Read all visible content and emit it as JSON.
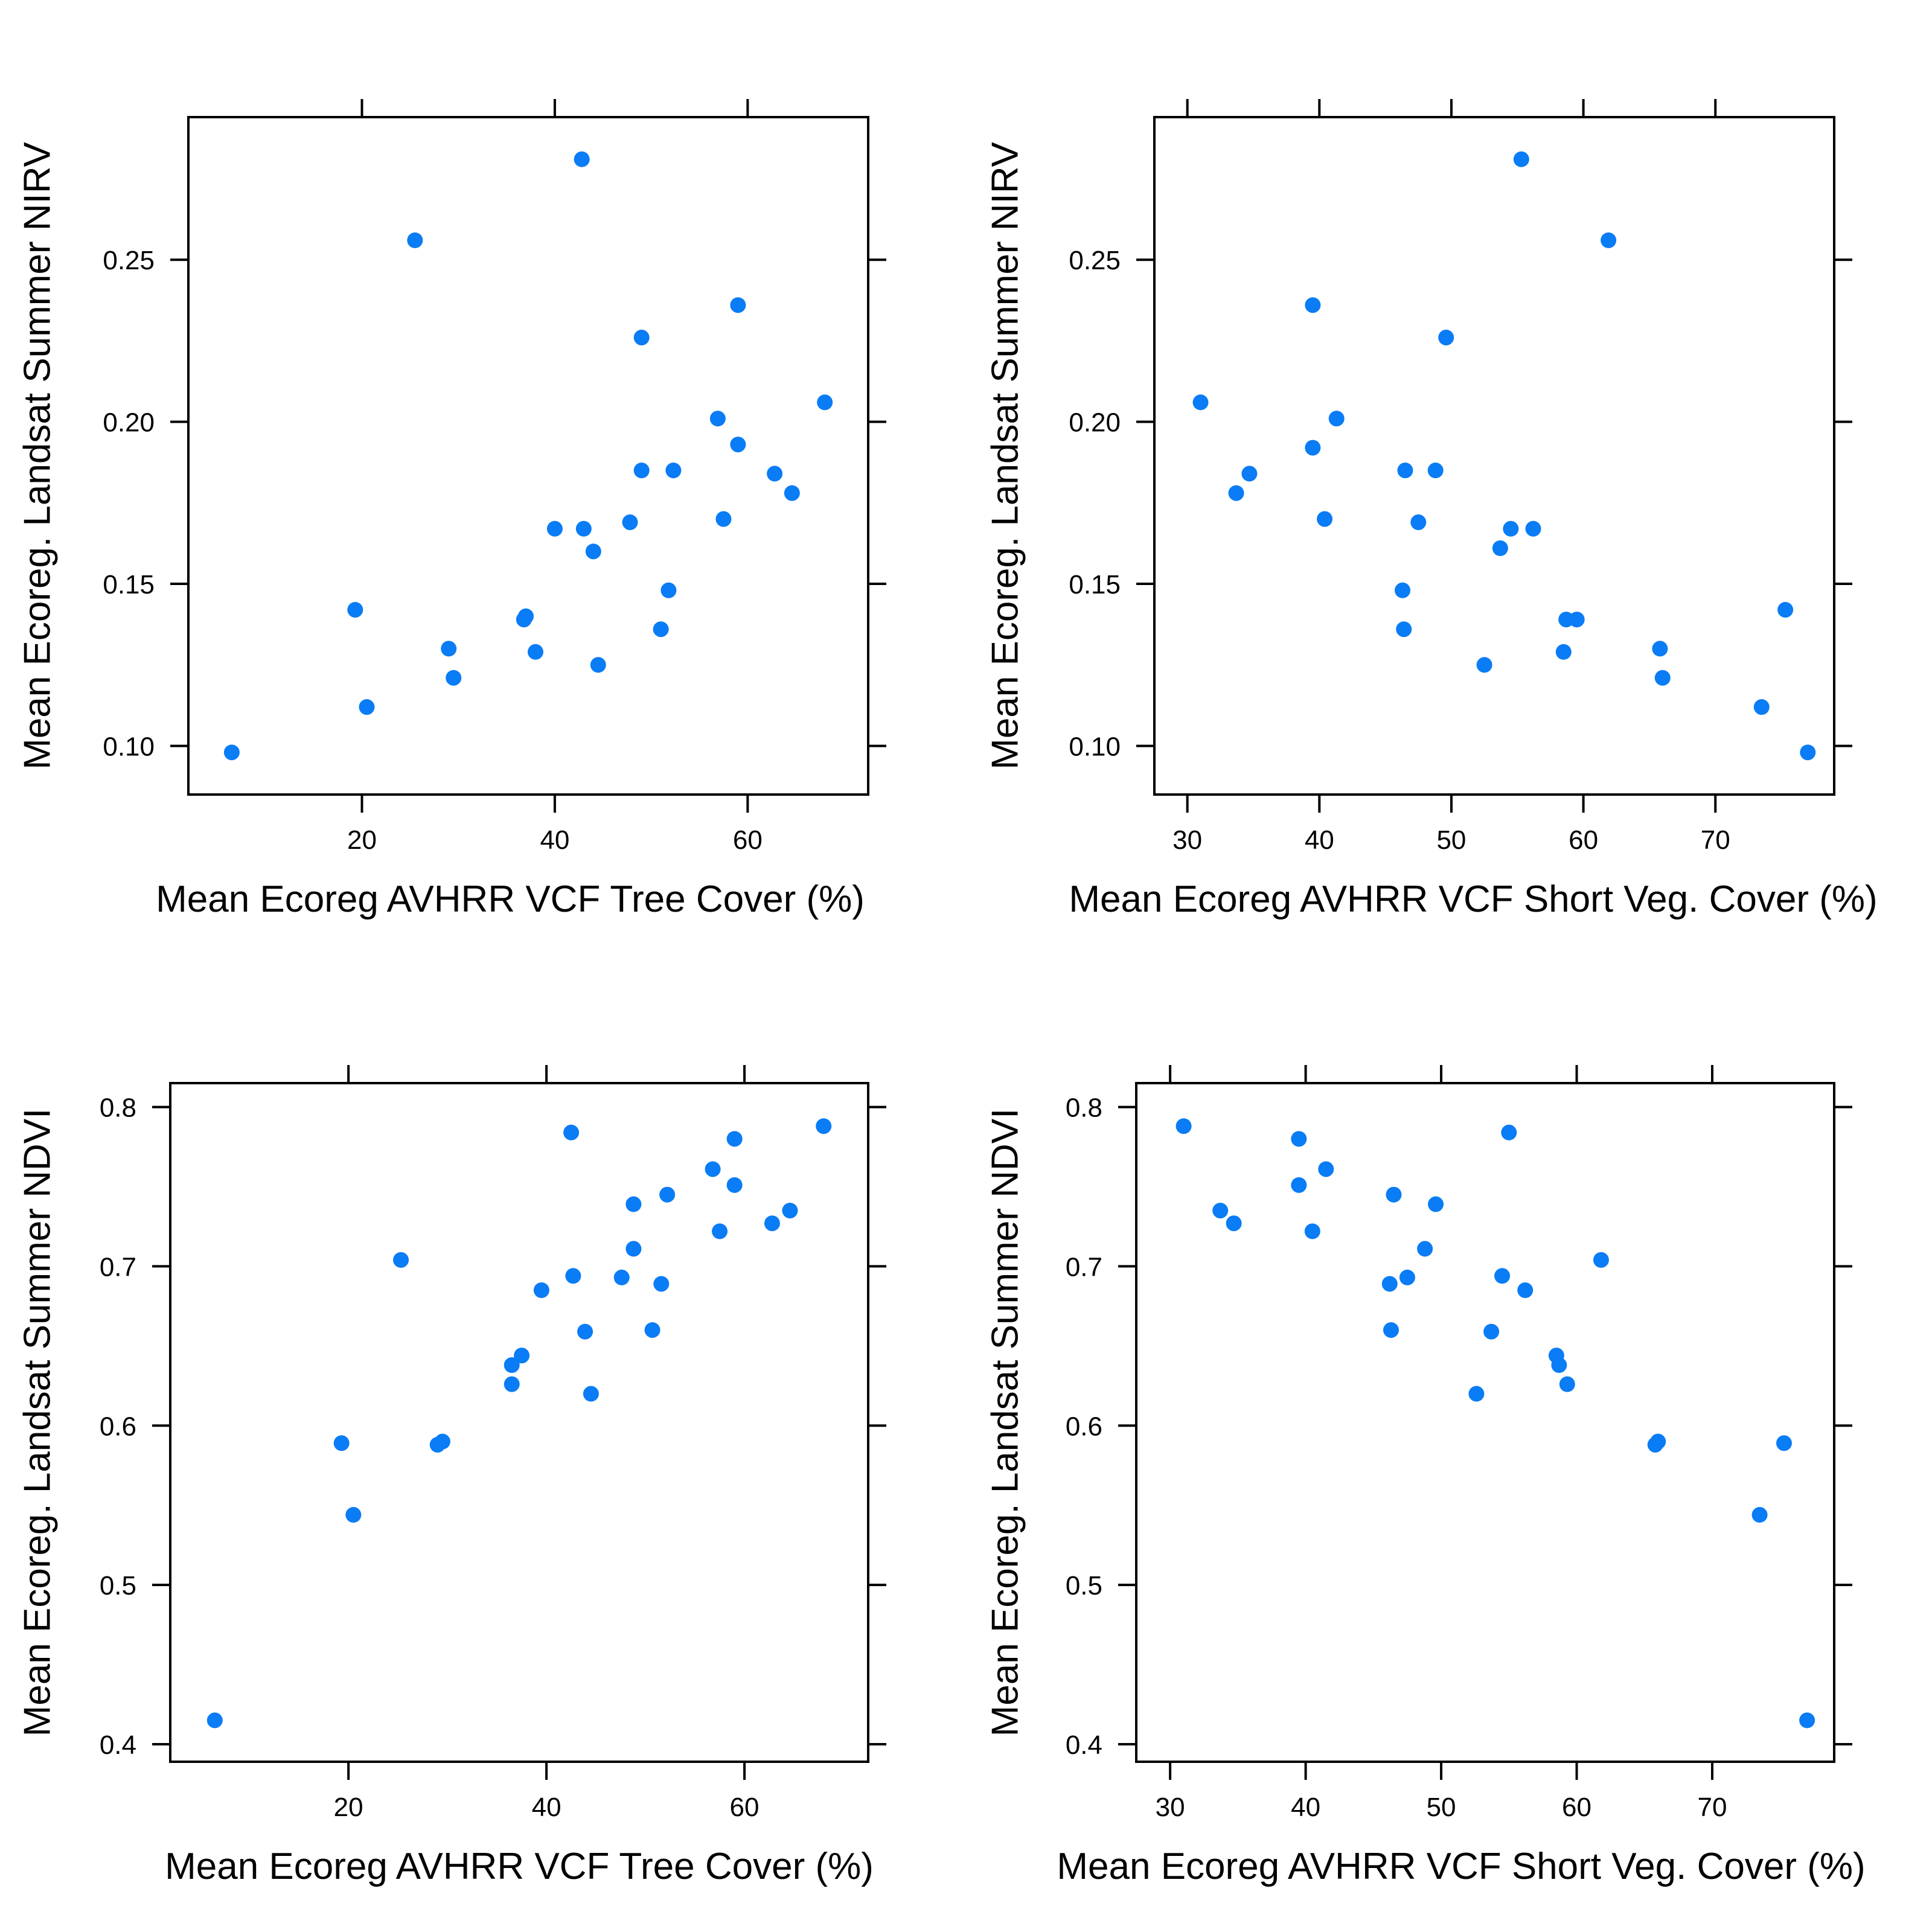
{
  "colors": {
    "point": "#0a7cf5",
    "axis": "#000000"
  },
  "chart_data": [
    {
      "type": "scatter",
      "xlabel": "Mean Ecoreg AVHRR VCF Tree Cover (%)",
      "ylabel": "Mean Ecoreg. Landsat Summer NIRV",
      "xticks": [
        20,
        40,
        60
      ],
      "yticks": [
        "0.10",
        "0.15",
        "0.20",
        "0.25"
      ],
      "xlim": [
        2,
        72.5
      ],
      "ylim": [
        0.085,
        0.294
      ],
      "points": [
        [
          6.5,
          0.098
        ],
        [
          19.3,
          0.142
        ],
        [
          20.5,
          0.112
        ],
        [
          25.5,
          0.256
        ],
        [
          29,
          0.13
        ],
        [
          29.5,
          0.121
        ],
        [
          36.8,
          0.139
        ],
        [
          37,
          0.14
        ],
        [
          38,
          0.129
        ],
        [
          40,
          0.167
        ],
        [
          42.8,
          0.281
        ],
        [
          43,
          0.167
        ],
        [
          44,
          0.16
        ],
        [
          44.5,
          0.125
        ],
        [
          47.8,
          0.169
        ],
        [
          49,
          0.185
        ],
        [
          49,
          0.226
        ],
        [
          51,
          0.136
        ],
        [
          51.8,
          0.148
        ],
        [
          52.3,
          0.185
        ],
        [
          56.9,
          0.201
        ],
        [
          57.5,
          0.17
        ],
        [
          59,
          0.193
        ],
        [
          59,
          0.236
        ],
        [
          62.8,
          0.184
        ],
        [
          64.6,
          0.178
        ],
        [
          68,
          0.206
        ]
      ]
    },
    {
      "type": "scatter",
      "xlabel": "Mean Ecoreg AVHRR VCF Short Veg. Cover (%)",
      "ylabel": "Mean Ecoreg. Landsat Summer NIRV",
      "xticks": [
        30,
        40,
        50,
        60,
        70
      ],
      "yticks": [
        "0.10",
        "0.15",
        "0.20",
        "0.25"
      ],
      "xlim": [
        27.5,
        79
      ],
      "ylim": [
        0.085,
        0.294
      ],
      "points": [
        [
          31,
          0.206
        ],
        [
          33.7,
          0.178
        ],
        [
          34.7,
          0.184
        ],
        [
          39.5,
          0.236
        ],
        [
          39.5,
          0.192
        ],
        [
          40.4,
          0.17
        ],
        [
          41.3,
          0.201
        ],
        [
          46.3,
          0.148
        ],
        [
          46.4,
          0.136
        ],
        [
          46.5,
          0.185
        ],
        [
          47.5,
          0.169
        ],
        [
          48.8,
          0.185
        ],
        [
          49.6,
          0.226
        ],
        [
          52.5,
          0.125
        ],
        [
          53.7,
          0.161
        ],
        [
          54.5,
          0.167
        ],
        [
          55.3,
          0.281
        ],
        [
          56.2,
          0.167
        ],
        [
          58.5,
          0.129
        ],
        [
          58.7,
          0.139
        ],
        [
          59.5,
          0.139
        ],
        [
          61.9,
          0.256
        ],
        [
          65.8,
          0.13
        ],
        [
          66,
          0.121
        ],
        [
          73.5,
          0.112
        ],
        [
          75.3,
          0.142
        ],
        [
          77,
          0.098
        ]
      ]
    },
    {
      "type": "scatter",
      "xlabel": "Mean Ecoreg AVHRR VCF Tree Cover (%)",
      "ylabel": "Mean Ecoreg. Landsat Summer NDVI",
      "xticks": [
        20,
        40,
        60
      ],
      "yticks": [
        "0.4",
        "0.5",
        "0.6",
        "0.7",
        "0.8"
      ],
      "xlim": [
        2,
        72.5
      ],
      "ylim": [
        0.389,
        0.815
      ],
      "points": [
        [
          6.5,
          0.415
        ],
        [
          19.3,
          0.589
        ],
        [
          20.5,
          0.544
        ],
        [
          25.3,
          0.704
        ],
        [
          29,
          0.588
        ],
        [
          29.5,
          0.59
        ],
        [
          36.5,
          0.626
        ],
        [
          36.5,
          0.638
        ],
        [
          37.5,
          0.644
        ],
        [
          39.5,
          0.685
        ],
        [
          42.5,
          0.784
        ],
        [
          42.7,
          0.694
        ],
        [
          43.9,
          0.659
        ],
        [
          44.5,
          0.62
        ],
        [
          47.6,
          0.693
        ],
        [
          48.8,
          0.739
        ],
        [
          48.8,
          0.711
        ],
        [
          50.7,
          0.66
        ],
        [
          51.6,
          0.689
        ],
        [
          52.2,
          0.745
        ],
        [
          56.8,
          0.761
        ],
        [
          57.5,
          0.722
        ],
        [
          59,
          0.751
        ],
        [
          59,
          0.78
        ],
        [
          62.8,
          0.727
        ],
        [
          64.6,
          0.735
        ],
        [
          68,
          0.788
        ]
      ]
    },
    {
      "type": "scatter",
      "xlabel": "Mean Ecoreg AVHRR VCF Short Veg. Cover (%)",
      "ylabel": "Mean Ecoreg. Landsat Summer NDVI",
      "xticks": [
        30,
        40,
        50,
        60,
        70
      ],
      "yticks": [
        "0.4",
        "0.5",
        "0.6",
        "0.7",
        "0.8"
      ],
      "xlim": [
        27.5,
        79
      ],
      "ylim": [
        0.389,
        0.815
      ],
      "points": [
        [
          31,
          0.788
        ],
        [
          33.7,
          0.735
        ],
        [
          34.7,
          0.727
        ],
        [
          39.5,
          0.751
        ],
        [
          39.5,
          0.78
        ],
        [
          40.5,
          0.722
        ],
        [
          41.5,
          0.761
        ],
        [
          46.2,
          0.689
        ],
        [
          46.3,
          0.66
        ],
        [
          46.5,
          0.745
        ],
        [
          47.5,
          0.693
        ],
        [
          48.8,
          0.711
        ],
        [
          49.6,
          0.739
        ],
        [
          52.6,
          0.62
        ],
        [
          53.7,
          0.659
        ],
        [
          54.5,
          0.694
        ],
        [
          55,
          0.784
        ],
        [
          56.2,
          0.685
        ],
        [
          58.5,
          0.644
        ],
        [
          58.7,
          0.638
        ],
        [
          59.3,
          0.626
        ],
        [
          61.8,
          0.704
        ],
        [
          65.8,
          0.588
        ],
        [
          66,
          0.59
        ],
        [
          73.5,
          0.544
        ],
        [
          75.3,
          0.589
        ],
        [
          77,
          0.415
        ]
      ]
    }
  ]
}
